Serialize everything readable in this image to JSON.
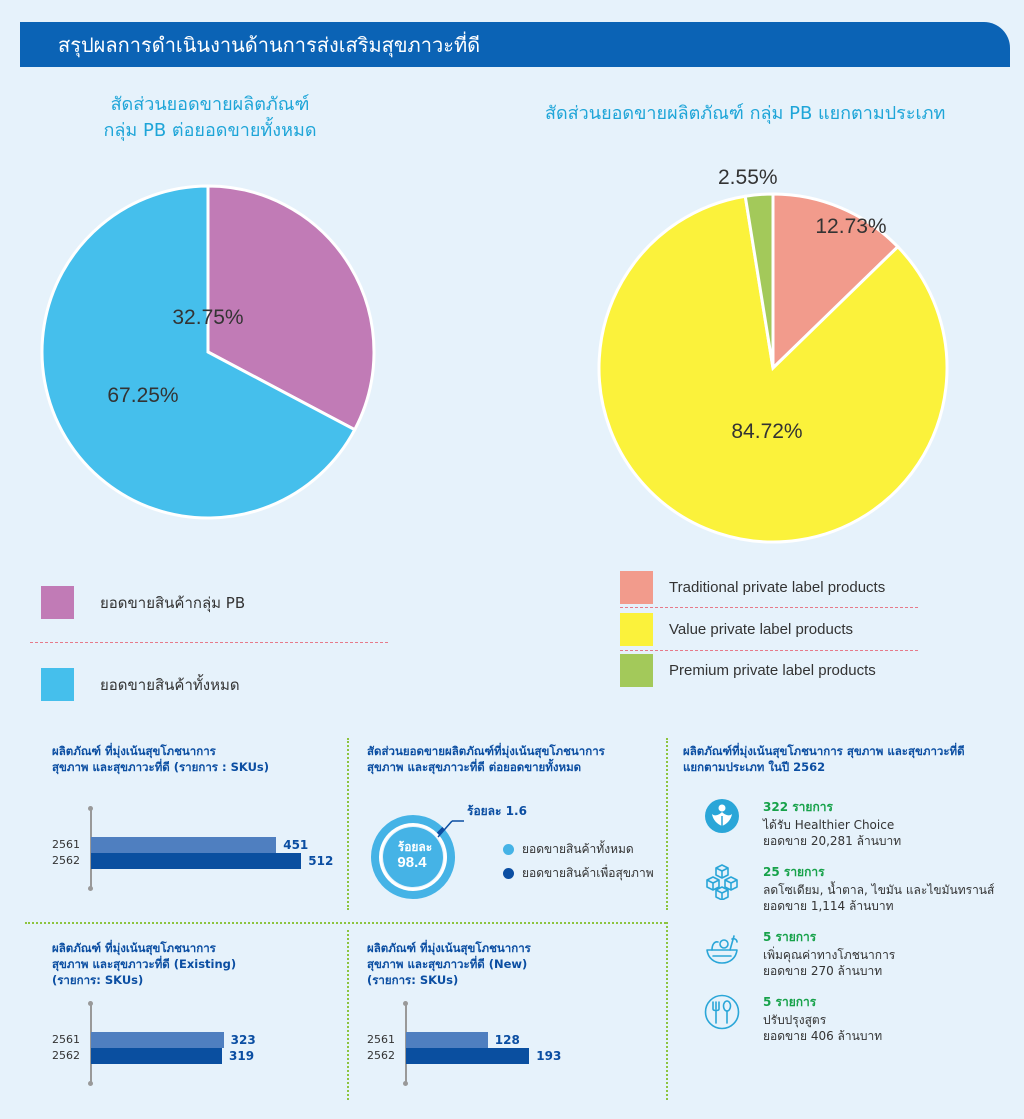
{
  "header": {
    "title": "สรุปผลการดำเนินงานด้านการส่งเสริมสุขภาวะที่ดี"
  },
  "chart_data": [
    {
      "type": "pie",
      "title_line1": "สัดส่วนยอดขายผลิตภัณฑ์",
      "title_line2": "กลุ่ม PB  ต่อยอดขายทั้งหมด",
      "slices": [
        {
          "label": "32.75%",
          "name": "ยอดขายสินค้ากลุ่ม PB",
          "value": 32.75,
          "color": "#c17bb6"
        },
        {
          "label": "67.25%",
          "name": "ยอดขายสินค้าทั้งหมด",
          "value": 67.25,
          "color": "#45bfec"
        }
      ]
    },
    {
      "type": "pie",
      "title": "สัดส่วนยอดขายผลิตภัณฑ์ กลุ่ม PB แยกตามประเภท",
      "slices": [
        {
          "label": "12.73%",
          "name": "Traditional private label products",
          "value": 12.73,
          "color": "#f29b8c"
        },
        {
          "label": "84.72%",
          "name": "Value private label products",
          "value": 84.72,
          "color": "#fbf23b"
        },
        {
          "label": "2.55%",
          "name": "Premium private label products",
          "value": 2.55,
          "color": "#a3c95a"
        }
      ]
    },
    {
      "type": "bar",
      "title_line1": "ผลิตภัณฑ์ ที่มุ่งเน้นสุขโภชนาการ",
      "title_line2": "สุขภาพ และสุขภาวะที่ดี (รายการ : SKUs)",
      "categories": [
        "2561",
        "2562"
      ],
      "values": [
        451,
        512
      ],
      "xlim": [
        0,
        560
      ]
    },
    {
      "type": "pie",
      "title_line1": "สัดส่วนยอดขายผลิตภัณฑ์ที่มุ่งเน้นสุขโภชนาการ",
      "title_line2": "สุขภาพ และสุขภาวะที่ดี ต่อยอดขายทั้งหมด",
      "center_prefix": "ร้อยละ",
      "center_value": "98.4",
      "small_label": "ร้อยละ  1.6",
      "slices": [
        {
          "name": "ยอดขายสินค้าทั้งหมด",
          "value": 98.4,
          "color": "#45b3e6"
        },
        {
          "name": "ยอดขายสินค้าเพื่อสุขภาพ",
          "value": 1.6,
          "color": "#0b4ea2"
        }
      ]
    },
    {
      "type": "bar",
      "title_line1": "ผลิตภัณฑ์ ที่มุ่งเน้นสุขโภชนาการ",
      "title_line2": "สุขภาพ และสุขภาวะที่ดี (Existing)",
      "title_line3": "(รายการ: SKUs)",
      "categories": [
        "2561",
        "2562"
      ],
      "values": [
        323,
        319
      ],
      "xlim": [
        0,
        560
      ]
    },
    {
      "type": "bar",
      "title_line1": "ผลิตภัณฑ์ ที่มุ่งเน้นสุขโภชนาการ",
      "title_line2": "สุขภาพ และสุขภาวะที่ดี (New)",
      "title_line3": "(รายการ: SKUs)",
      "categories": [
        "2561",
        "2562"
      ],
      "values": [
        128,
        193
      ],
      "xlim": [
        0,
        360
      ]
    }
  ],
  "colors": {
    "bar_2561": "#4f7fc0",
    "bar_2562": "#0a4fa0",
    "accent": "#0b63b5"
  },
  "categories_panel": {
    "title_line1": "ผลิตภัณฑ์ที่มุ่งเน้นสุขโภชนาการ สุขภาพ และสุขภาวะที่ดี",
    "title_line2": "แยกตามประเภท ในปี 2562",
    "items": [
      {
        "icon": "healthier-choice-icon",
        "count": "322 รายการ",
        "line1": "ได้รับ Healthier Choice",
        "line2": "ยอดขาย 20,281 ล้านบาท"
      },
      {
        "icon": "sugar-cubes-icon",
        "count": "25 รายการ",
        "line1": "ลดโซเดียม, น้ำตาล, ไขมัน และไขมันทรานส์",
        "line2": "ยอดขาย 1,114 ล้านบาท"
      },
      {
        "icon": "vegetable-bowl-icon",
        "count": "5 รายการ",
        "line1": "เพิ่มคุณค่าทางโภชนาการ",
        "line2": "ยอดขาย 270 ล้านบาท"
      },
      {
        "icon": "fork-spoon-icon",
        "count": "5 รายการ",
        "line1": "ปรับปรุงสูตร",
        "line2": "ยอดขาย 406 ล้านบาท"
      }
    ]
  }
}
